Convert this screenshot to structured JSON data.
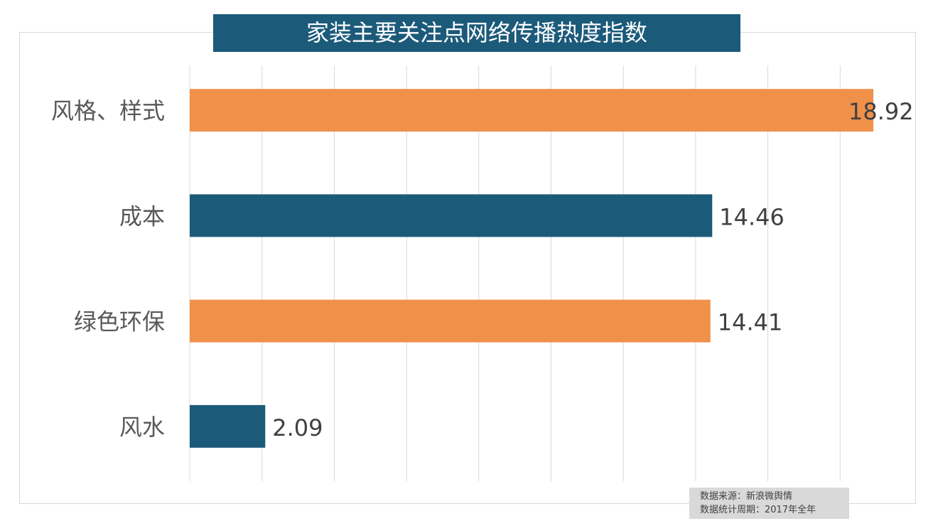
{
  "chart_data": {
    "type": "bar",
    "orientation": "horizontal",
    "title": "家装主要关注点网络传播热度指数",
    "categories": [
      "风格、样式",
      "成本",
      "绿色环保",
      "风水"
    ],
    "values": [
      18.92,
      14.46,
      14.41,
      2.09
    ],
    "data_labels": [
      "18.92",
      "14.46",
      "14.41",
      "2.09"
    ],
    "bar_colors": [
      "#f0914a",
      "#1c5a7a",
      "#f0914a",
      "#1c5a7a"
    ],
    "xlim": [
      0,
      20
    ],
    "grid_step": 2,
    "grid": true,
    "x_tick_labels_visible": false,
    "xlabel": "",
    "ylabel": ""
  },
  "colors": {
    "title_bg": "#1c5a7a",
    "orange": "#f0914a",
    "blue": "#1c5a7a"
  },
  "source": {
    "line1": "数据来源：新浪微舆情",
    "line2": "数据统计周期：2017年全年"
  }
}
